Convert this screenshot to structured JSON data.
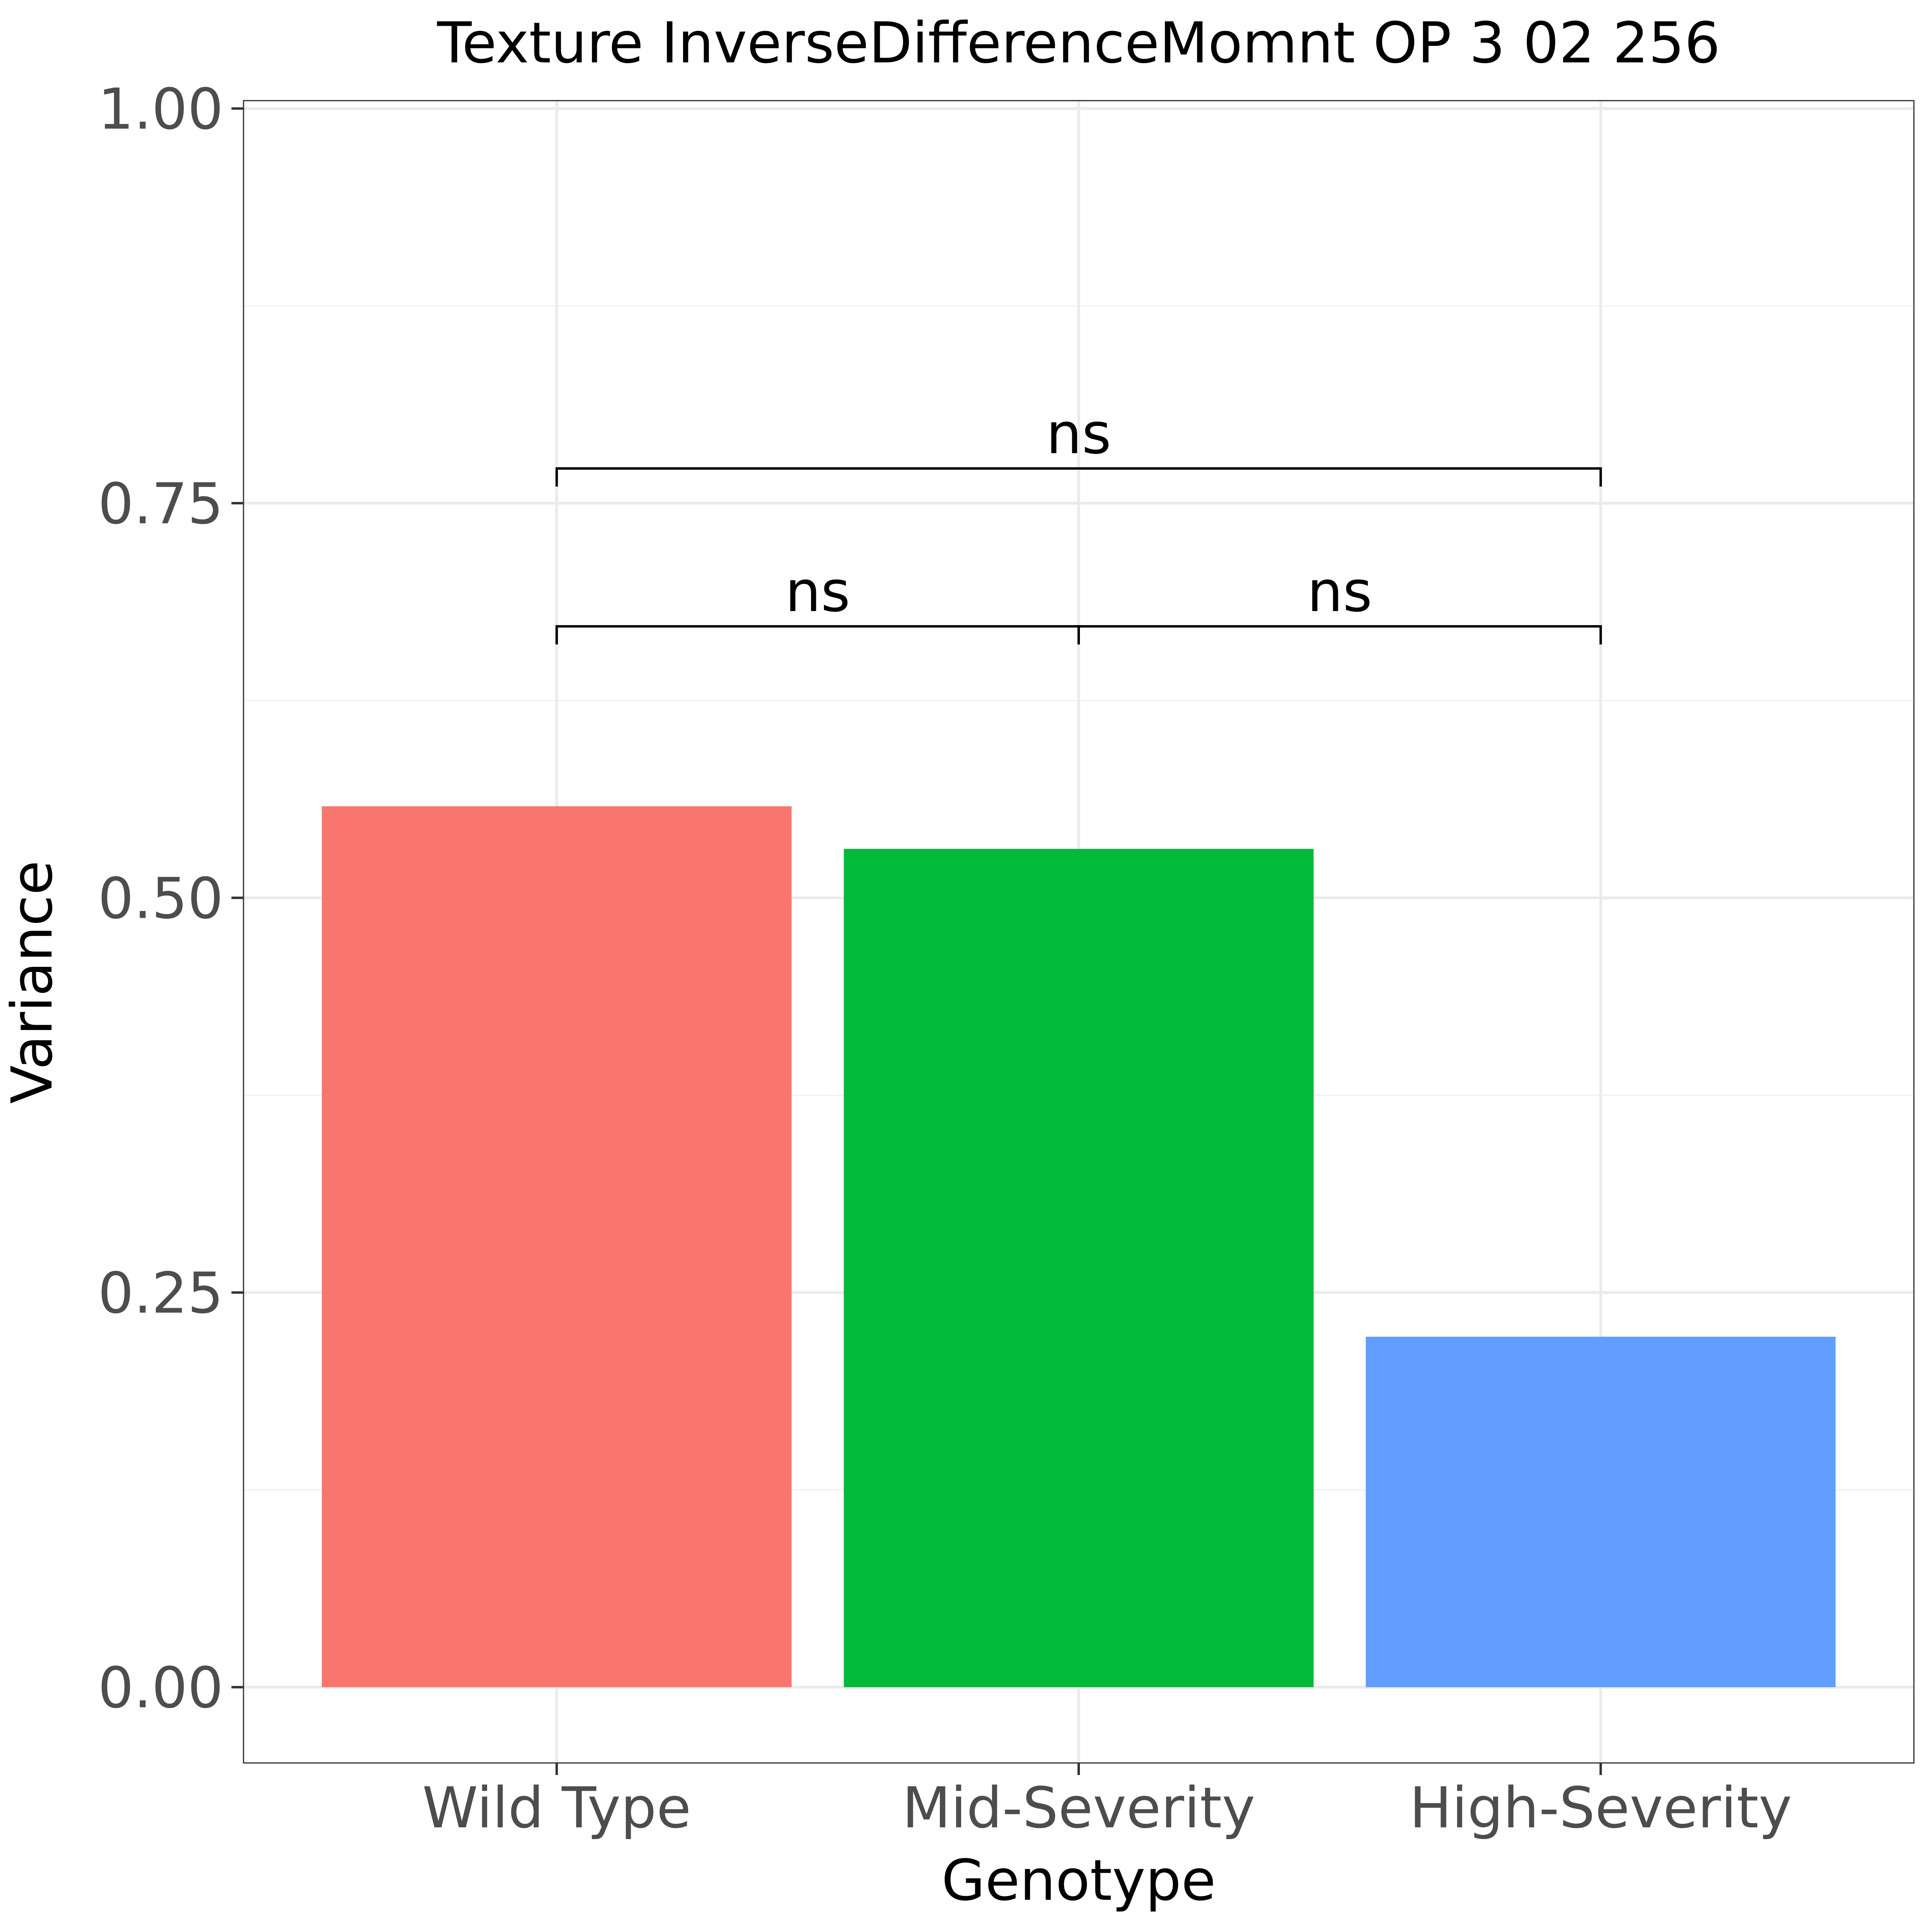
{
  "chart_data": {
    "type": "bar",
    "title": "Texture InverseDifferenceMomnt OP 3 02 256",
    "xlabel": "Genotype",
    "ylabel": "Variance",
    "categories": [
      "Wild Type",
      "Mid-Severity",
      "High-Severity"
    ],
    "values": [
      0.558,
      0.531,
      0.222
    ],
    "colors": [
      "#F8766D",
      "#00BA38",
      "#619CFF"
    ],
    "ylim": [
      -0.048,
      1.005
    ],
    "yticks": [
      0.0,
      0.25,
      0.5,
      0.75,
      1.0
    ],
    "ytick_labels": [
      "0.00",
      "0.25",
      "0.50",
      "0.75",
      "1.00"
    ],
    "grid": true,
    "legend": "none",
    "comparisons": [
      {
        "from": "Wild Type",
        "to": "Mid-Severity",
        "label": "ns",
        "y": 0.672
      },
      {
        "from": "Mid-Severity",
        "to": "High-Severity",
        "label": "ns",
        "y": 0.672
      },
      {
        "from": "Wild Type",
        "to": "High-Severity",
        "label": "ns",
        "y": 0.772
      }
    ]
  }
}
